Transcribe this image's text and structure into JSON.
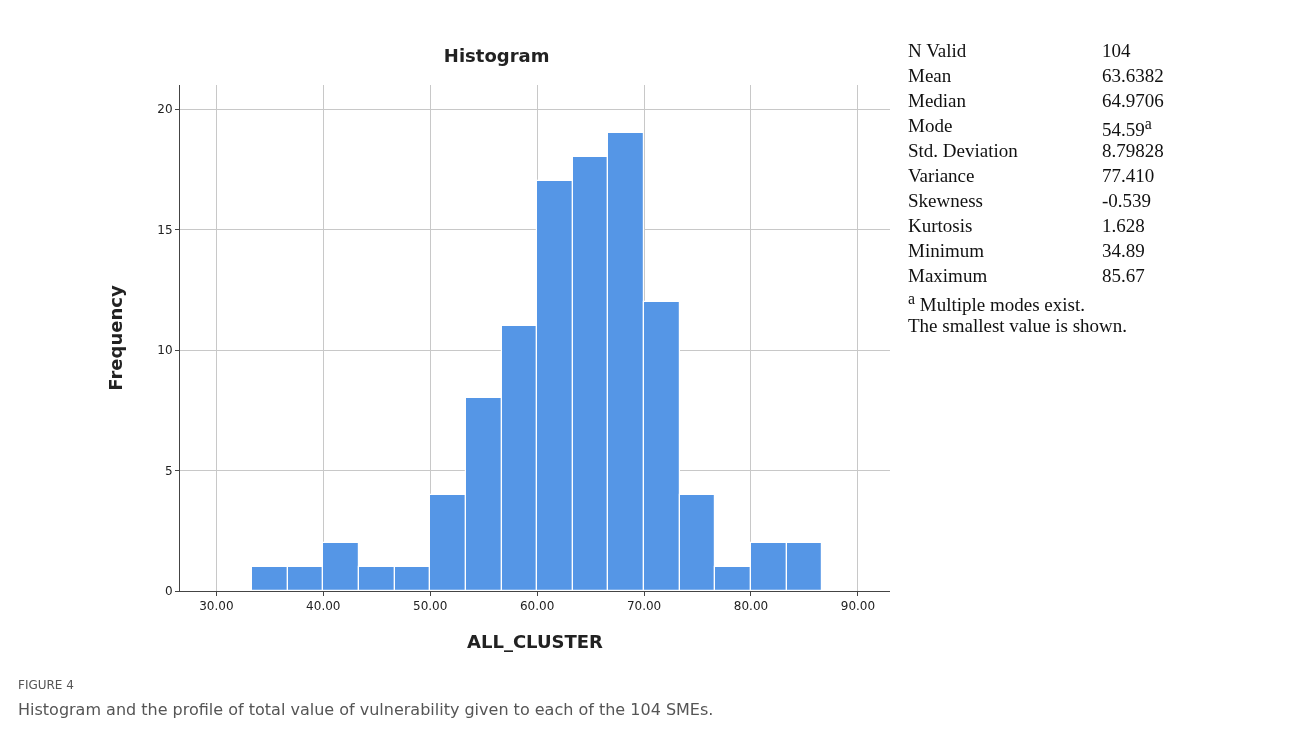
{
  "chart_data": {
    "type": "histogram",
    "title": "Histogram",
    "xlabel": "ALL_CLUSTER",
    "ylabel": "Frequency",
    "bins": [
      33.33,
      36.67,
      40,
      43.33,
      46.67,
      50,
      53.33,
      56.67,
      60,
      63.33,
      66.67,
      70,
      73.33,
      76.67,
      80,
      83.33,
      86.67
    ],
    "values": [
      1,
      1,
      2,
      1,
      1,
      4,
      8,
      11,
      17,
      18,
      19,
      12,
      4,
      1,
      2,
      2
    ],
    "color": "#5596e6",
    "xlim": [
      26.6,
      93
    ],
    "xticks": [
      {
        "value": 30,
        "label": "30.00"
      },
      {
        "value": 40,
        "label": "40.00"
      },
      {
        "value": 50,
        "label": "50.00"
      },
      {
        "value": 60,
        "label": "60.00"
      },
      {
        "value": 70,
        "label": "70.00"
      },
      {
        "value": 80,
        "label": "80.00"
      },
      {
        "value": 90,
        "label": "90.00"
      }
    ],
    "ylim": [
      0,
      21
    ],
    "yticks": [
      0,
      5,
      10,
      15,
      20
    ],
    "grid": true,
    "annotations": [
      "N Valid",
      "104",
      "Mean",
      "63.6382",
      "Median",
      "64.9706",
      "Mode",
      "54.59$^{a}$",
      "Std. Deviation",
      "8.79828",
      "Variance",
      "77.410",
      "Skewness",
      "-0.539",
      "Kurtosis",
      "1.628",
      "Minimum",
      "34.89",
      "Maximum",
      "85.67",
      "$^{a}$ Multiple modes exist.",
      "The smallest value is shown.",
      "FIGURE 4",
      "Histogram and the profile of total value of vulnerability given to each of the 104 SMEs."
    ]
  }
}
